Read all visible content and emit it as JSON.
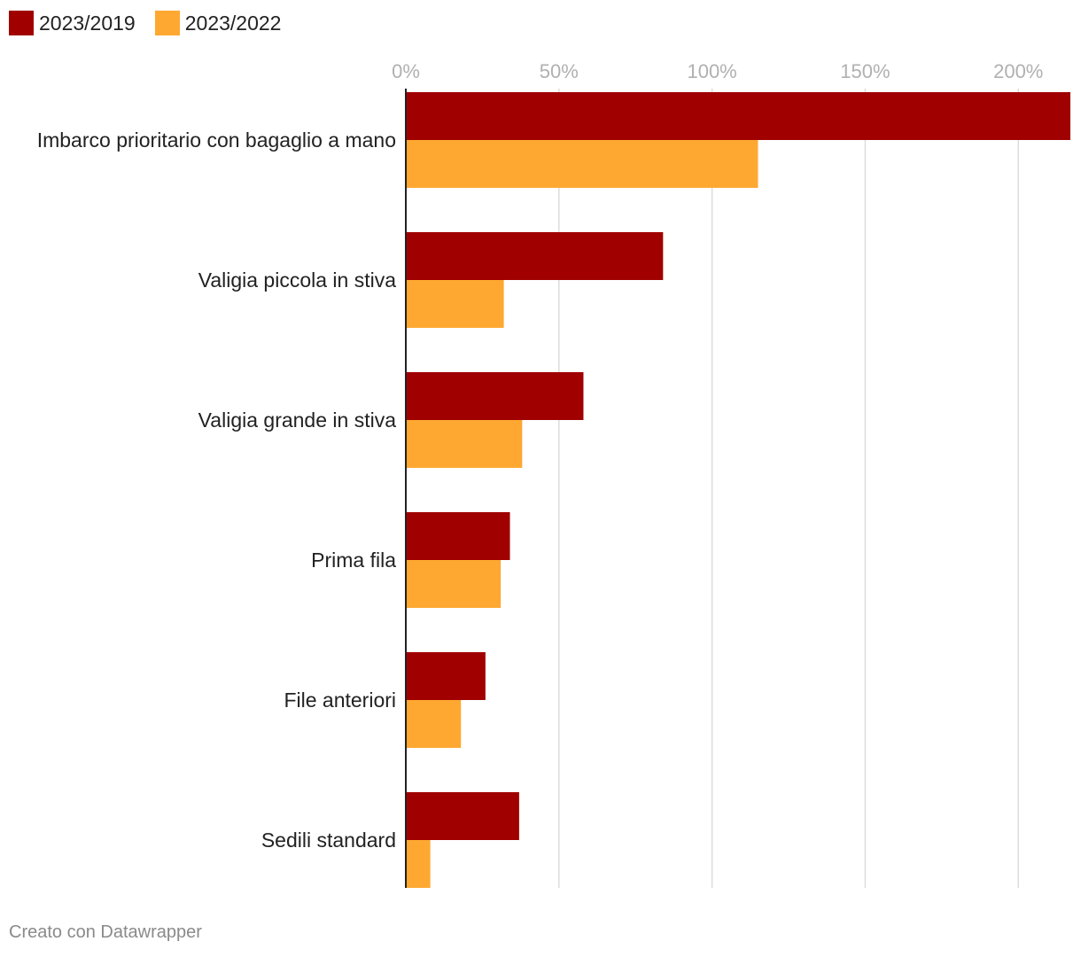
{
  "legend": [
    {
      "label": "2023/2019",
      "color": "#a00000"
    },
    {
      "label": "2023/2022",
      "color": "#fea831"
    }
  ],
  "chart_data": {
    "type": "bar",
    "orientation": "horizontal",
    "categories": [
      "Imbarco prioritario con bagaglio a mano",
      "Valigia piccola in stiva",
      "Valigia grande in stiva",
      "Prima fila",
      "File anteriori",
      "Sedili standard"
    ],
    "series": [
      {
        "name": "2023/2019",
        "color": "#a00000",
        "values": [
          219,
          84,
          58,
          34,
          26,
          37
        ]
      },
      {
        "name": "2023/2022",
        "color": "#fea831",
        "values": [
          115,
          32,
          38,
          31,
          18,
          8
        ]
      }
    ],
    "xlim": [
      0,
      217
    ],
    "xticks": [
      0,
      50,
      100,
      150,
      200
    ],
    "xtick_labels": [
      "0%",
      "50%",
      "100%",
      "150%",
      "200%"
    ],
    "tick_color": "#b0b0b0",
    "grid": true,
    "legend_position": "top-left",
    "title": "",
    "xlabel": "",
    "ylabel": ""
  },
  "footer": {
    "credit": "Creato con Datawrapper"
  }
}
